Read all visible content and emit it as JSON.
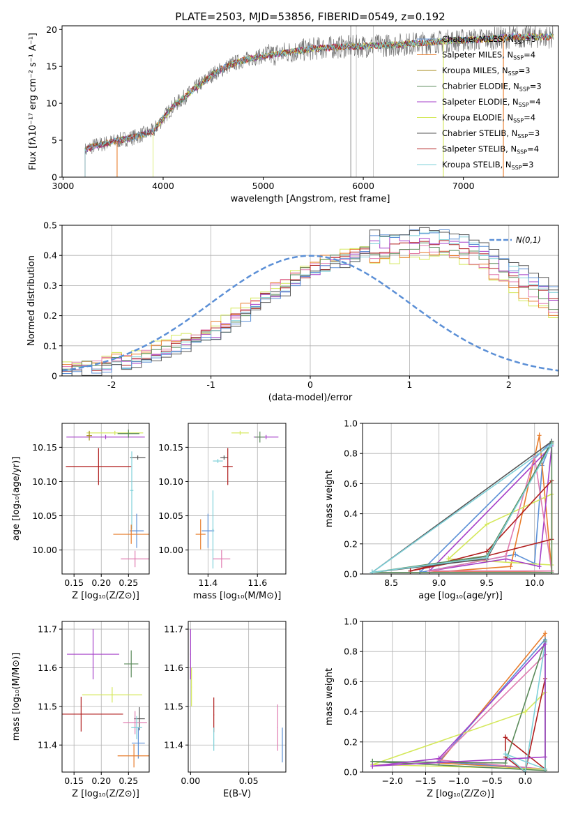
{
  "figure_title": "PLATE=2503, MJD=53856, FIBERID=0549, z=0.192",
  "colors": {
    "Chabrier MILES": "#5b8fd6",
    "Salpeter MILES": "#e87c2a",
    "Kroupa MILES": "#a48a1a",
    "Chabrier ELODIE": "#5a8a5a",
    "Salpeter ELODIE": "#a53fc8",
    "Kroupa ELODIE": "#d4e85a",
    "Chabrier STELIB": "#555555",
    "Salpeter STELIB": "#b01e1e",
    "Kroupa STELIB": "#7ed0d8",
    "pink": "#e07ab0",
    "normal": "#5b8fd6"
  },
  "chart_data": [
    {
      "type": "line",
      "name": "spectrum",
      "xlabel": "wavelength [Angstrom, rest frame]",
      "ylabel": "Flux [fλ10⁻¹⁷ erg cm⁻² s⁻¹ A⁻¹]",
      "xlim": [
        2990,
        7950
      ],
      "ylim": [
        0,
        20.5
      ],
      "xticks": [
        3000,
        4000,
        5000,
        6000,
        7000
      ],
      "yticks": [
        0,
        5,
        10,
        15,
        20
      ],
      "continuum": {
        "x": [
          3220,
          3300,
          3500,
          3700,
          3900,
          4000,
          4100,
          4300,
          4500,
          4700,
          4900,
          5100,
          5300,
          5500,
          5700,
          5900,
          6100,
          6300,
          6500,
          6700,
          6900,
          7100,
          7300,
          7500,
          7800
        ],
        "y": [
          3.6,
          4.2,
          4.8,
          5.4,
          6.2,
          8.0,
          9.6,
          11.8,
          14.0,
          15.4,
          16.2,
          16.6,
          17.0,
          17.4,
          17.6,
          17.7,
          17.8,
          17.9,
          18.1,
          18.3,
          18.5,
          18.6,
          18.8,
          19.0,
          19.0
        ]
      },
      "legend": [
        {
          "label": "Chabrier MILES, N",
          "sub": "SSP",
          "tail": "=5"
        },
        {
          "label": "Salpeter MILES, N",
          "sub": "SSP",
          "tail": "=4"
        },
        {
          "label": "Kroupa MILES, N",
          "sub": "SSP",
          "tail": "=3"
        },
        {
          "label": "Chabrier ELODIE, N",
          "sub": "SSP",
          "tail": "=3"
        },
        {
          "label": "Salpeter ELODIE, N",
          "sub": "SSP",
          "tail": "=4"
        },
        {
          "label": "Kroupa ELODIE, N",
          "sub": "SSP",
          "tail": "=4"
        },
        {
          "label": "Chabrier STELIB, N",
          "sub": "SSP",
          "tail": "=3"
        },
        {
          "label": "Salpeter STELIB, N",
          "sub": "SSP",
          "tail": "=4"
        },
        {
          "label": "Kroupa STELIB, N",
          "sub": "SSP",
          "tail": "=3"
        }
      ],
      "model_starts": [
        3220,
        3220,
        3220,
        3220,
        3220,
        3900,
        3220,
        3220,
        3220
      ],
      "model_cuts": [
        {
          "model": "Salpeter MILES",
          "x": 3540
        },
        {
          "model": "Salpeter MILES",
          "x": 7400
        },
        {
          "model": "Kroupa ELODIE",
          "x": 6800
        }
      ]
    },
    {
      "type": "step",
      "name": "residual histogram",
      "xlabel": "(data-model)/error",
      "ylabel": "Normed distribution",
      "xlim": [
        -2.5,
        2.5
      ],
      "ylim": [
        0,
        0.5
      ],
      "xticks": [
        -2,
        -1,
        0,
        1,
        2
      ],
      "yticks": [
        0.0,
        0.1,
        0.2,
        0.3,
        0.4,
        0.5
      ],
      "bin_width": 0.1,
      "gaussian_label": "N(0,1)",
      "base_profile": [
        0.02,
        0.025,
        0.03,
        0.035,
        0.04,
        0.045,
        0.05,
        0.06,
        0.07,
        0.08,
        0.09,
        0.1,
        0.11,
        0.12,
        0.135,
        0.15,
        0.17,
        0.19,
        0.21,
        0.235,
        0.26,
        0.28,
        0.3,
        0.32,
        0.34,
        0.355,
        0.37,
        0.38,
        0.39,
        0.4,
        0.41,
        0.42,
        0.425,
        0.43,
        0.435,
        0.44,
        0.44,
        0.44,
        0.435,
        0.43,
        0.42,
        0.41,
        0.39,
        0.37,
        0.35,
        0.33,
        0.31,
        0.29,
        0.27,
        0.25,
        0.23,
        0.21,
        0.19,
        0.17,
        0.15,
        0.13,
        0.12,
        0.105,
        0.09,
        0.08,
        0.07,
        0.06,
        0.055,
        0.05,
        0.045,
        0.04,
        0.035,
        0.03,
        0.03,
        0.028
      ]
    },
    {
      "type": "errorbar",
      "name": "age vs Z",
      "xlabel": "Z [log₁₀(Z/Z⊙)]",
      "ylabel": "age  [log₁₀(age/yr)]",
      "xlim": [
        0.128,
        0.288
      ],
      "ylim": [
        9.965,
        10.185
      ],
      "xticks": [
        0.15,
        0.2,
        0.25
      ],
      "xticklabels": [
        "0.15",
        "0.20",
        "0.25"
      ],
      "yticks": [
        10.0,
        10.05,
        10.1,
        10.15
      ],
      "yticklabels": [
        "10.00",
        "10.05",
        "10.10",
        "10.15"
      ],
      "points": [
        {
          "model": "Salpeter ELODIE",
          "x": 0.208,
          "xerr": 0.072,
          "y": 10.165,
          "yerr": 0.003
        },
        {
          "model": "Kroupa ELODIE",
          "x": 0.225,
          "xerr": 0.052,
          "y": 10.171,
          "yerr": 0.003
        },
        {
          "model": "Chabrier ELODIE",
          "x": 0.25,
          "xerr": 0.02,
          "y": 10.17,
          "yerr": 0.006
        },
        {
          "model": "Kroupa MILES",
          "x": 0.178,
          "xerr": 0.005,
          "y": 10.167,
          "yerr": 0.007
        },
        {
          "model": "Salpeter STELIB",
          "x": 0.195,
          "xerr": 0.06,
          "y": 10.122,
          "yerr": 0.027
        },
        {
          "model": "Chabrier STELIB",
          "x": 0.267,
          "xerr": 0.014,
          "y": 10.135,
          "yerr": 0.003
        },
        {
          "model": "Kroupa STELIB",
          "x": 0.256,
          "xerr": 0.003,
          "y": 10.087,
          "yerr": 0.057
        },
        {
          "model": "Chabrier MILES",
          "x": 0.265,
          "xerr": 0.013,
          "y": 10.028,
          "yerr": 0.025
        },
        {
          "model": "Salpeter MILES",
          "x": 0.255,
          "xerr": 0.033,
          "y": 10.023,
          "yerr": 0.014
        },
        {
          "model": "pink",
          "x": 0.262,
          "xerr": 0.026,
          "y": 9.987,
          "yerr": 0.012
        }
      ]
    },
    {
      "type": "errorbar",
      "name": "age vs mass",
      "xlabel": "mass [log₁₀(M/M⊙)]",
      "ylabel": "",
      "xlim": [
        11.32,
        11.715
      ],
      "ylim": [
        9.965,
        10.185
      ],
      "xticks": [
        11.4,
        11.6
      ],
      "xticklabels": [
        "11.4",
        "11.6"
      ],
      "yticks": [
        10.0,
        10.05,
        10.1,
        10.15
      ],
      "yticklabels": [
        "10.00",
        "10.05",
        "10.10",
        "10.15"
      ],
      "points": [
        {
          "model": "Kroupa ELODIE",
          "x": 11.53,
          "xerr": 0.035,
          "y": 10.171,
          "yerr": 0.003
        },
        {
          "model": "Salpeter ELODIE",
          "x": 11.635,
          "xerr": 0.05,
          "y": 10.165,
          "yerr": 0.003
        },
        {
          "model": "Chabrier ELODIE",
          "x": 11.61,
          "xerr": 0.02,
          "y": 10.165,
          "yerr": 0.008
        },
        {
          "model": "Chabrier STELIB",
          "x": 11.465,
          "xerr": 0.015,
          "y": 10.135,
          "yerr": 0.003
        },
        {
          "model": "Kroupa STELIB",
          "x": 11.44,
          "xerr": 0.02,
          "y": 10.13,
          "yerr": 0.003
        },
        {
          "model": "Salpeter STELIB",
          "x": 11.48,
          "xerr": 0.02,
          "y": 10.122,
          "yerr": 0.027
        },
        {
          "model": "Chabrier MILES",
          "x": 11.4,
          "xerr": 0.025,
          "y": 10.028,
          "yerr": 0.025
        },
        {
          "model": "Salpeter MILES",
          "x": 11.37,
          "xerr": 0.02,
          "y": 10.023,
          "yerr": 0.022
        },
        {
          "model": "Kroupa STELIB",
          "x": 11.42,
          "xerr": 0.003,
          "y": 10.03,
          "yerr": 0.057
        },
        {
          "model": "pink",
          "x": 11.455,
          "xerr": 0.035,
          "y": 9.987,
          "yerr": 0.013
        }
      ]
    },
    {
      "type": "line",
      "name": "mass weight vs age",
      "xlabel": "age  [log₁₀(age/yr)]",
      "ylabel": "mass weight",
      "xlim": [
        8.2,
        10.25
      ],
      "ylim": [
        0,
        1.0
      ],
      "xticks": [
        8.5,
        9.0,
        9.5,
        10.0
      ],
      "xticklabels": [
        "8.5",
        "9.0",
        "9.5",
        "10.0"
      ],
      "yticks": [
        0.0,
        0.2,
        0.4,
        0.6,
        0.8,
        1.0
      ],
      "yticklabels": [
        "0.0",
        "0.2",
        "0.4",
        "0.6",
        "0.8",
        "1.0"
      ],
      "series": [
        {
          "model": "Chabrier MILES",
          "x": [
            8.8,
            9.8,
            10.0,
            10.08,
            10.18,
            8.8
          ],
          "y": [
            0.01,
            0.13,
            0.07,
            0.72,
            0.88,
            0.01
          ]
        },
        {
          "model": "Salpeter MILES",
          "x": [
            8.9,
            9.75,
            10.05,
            10.18,
            8.9
          ],
          "y": [
            0.01,
            0.05,
            0.92,
            0.02,
            0.01
          ]
        },
        {
          "model": "Kroupa ELODIE",
          "x": [
            9.1,
            9.5,
            10.18,
            10.18,
            9.1
          ],
          "y": [
            0.1,
            0.33,
            0.53,
            0.06,
            0.1
          ]
        },
        {
          "model": "Salpeter ELODIE",
          "x": [
            8.9,
            9.7,
            10.05,
            10.18,
            8.9
          ],
          "y": [
            0.02,
            0.1,
            0.05,
            0.85,
            0.02
          ]
        },
        {
          "model": "pink",
          "x": [
            8.9,
            9.7,
            10.0,
            10.18,
            8.9
          ],
          "y": [
            0.02,
            0.12,
            0.78,
            0.02,
            0.02
          ]
        },
        {
          "model": "Salpeter STELIB",
          "x": [
            8.7,
            9.5,
            10.18,
            10.18,
            9.5,
            8.7
          ],
          "y": [
            0.02,
            0.15,
            0.62,
            0.23,
            0.12,
            0.02
          ]
        },
        {
          "model": "Chabrier STELIB",
          "x": [
            8.3,
            9.5,
            10.18,
            8.3
          ],
          "y": [
            0.01,
            0.1,
            0.88,
            0.01
          ]
        },
        {
          "model": "Chabrier ELODIE",
          "x": [
            8.3,
            9.5,
            10.18,
            10.18,
            8.3
          ],
          "y": [
            0.01,
            0.12,
            0.87,
            0.01,
            0.01
          ]
        },
        {
          "model": "Kroupa STELIB",
          "x": [
            8.3,
            9.5,
            10.18,
            8.3
          ],
          "y": [
            0.01,
            0.11,
            0.86,
            0.01
          ]
        }
      ]
    },
    {
      "type": "errorbar",
      "name": "mass vs Z",
      "xlabel": "Z [log₁₀(Z/Z⊙)]",
      "ylabel": "mass [log₁₀(M/M⊙)]",
      "xlim": [
        0.128,
        0.288
      ],
      "ylim": [
        11.33,
        11.72
      ],
      "xticks": [
        0.15,
        0.2,
        0.25
      ],
      "xticklabels": [
        "0.15",
        "0.20",
        "0.25"
      ],
      "yticks": [
        11.4,
        11.5,
        11.6,
        11.7
      ],
      "yticklabels": [
        "11.4",
        "11.5",
        "11.6",
        "11.7"
      ],
      "points": [
        {
          "model": "Salpeter ELODIE",
          "x": 0.185,
          "xerr": 0.048,
          "y": 11.635,
          "yerr": 0.065
        },
        {
          "model": "Chabrier ELODIE",
          "x": 0.255,
          "xerr": 0.013,
          "y": 11.61,
          "yerr": 0.035
        },
        {
          "model": "Kroupa ELODIE",
          "x": 0.22,
          "xerr": 0.055,
          "y": 11.53,
          "yerr": 0.02
        },
        {
          "model": "Salpeter STELIB",
          "x": 0.163,
          "xerr": 0.077,
          "y": 11.48,
          "yerr": 0.045
        },
        {
          "model": "Chabrier STELIB",
          "x": 0.27,
          "xerr": 0.01,
          "y": 11.468,
          "yerr": 0.03
        },
        {
          "model": "pink",
          "x": 0.262,
          "xerr": 0.022,
          "y": 11.458,
          "yerr": 0.03
        },
        {
          "model": "Kroupa STELIB",
          "x": 0.265,
          "xerr": 0.01,
          "y": 11.445,
          "yerr": 0.03
        },
        {
          "model": "Chabrier MILES",
          "x": 0.268,
          "xerr": 0.012,
          "y": 11.405,
          "yerr": 0.04
        },
        {
          "model": "Salpeter MILES",
          "x": 0.26,
          "xerr": 0.03,
          "y": 11.372,
          "yerr": 0.03
        }
      ]
    },
    {
      "type": "errorbar",
      "name": "mass vs E(B-V)",
      "xlabel": "E(B-V)",
      "ylabel": "",
      "xlim": [
        -0.002,
        0.082
      ],
      "ylim": [
        11.33,
        11.72
      ],
      "xticks": [
        0.0,
        0.05
      ],
      "xticklabels": [
        "0.00",
        "0.05"
      ],
      "yticks": [
        11.4,
        11.5,
        11.6,
        11.7
      ],
      "yticklabels": [
        "11.4",
        "11.5",
        "11.6",
        "11.7"
      ],
      "points": [
        {
          "model": "Salpeter ELODIE",
          "x": 0.0,
          "xerr": 0.0003,
          "y": 11.635,
          "yerr": 0.065
        },
        {
          "model": "Kroupa ELODIE",
          "x": 0.0008,
          "xerr": 0.0003,
          "y": 11.55,
          "yerr": 0.05
        },
        {
          "model": "Salpeter STELIB",
          "x": 0.02,
          "xerr": 0.0003,
          "y": 11.478,
          "yerr": 0.045
        },
        {
          "model": "Kroupa STELIB",
          "x": 0.02,
          "xerr": 0.0003,
          "y": 11.415,
          "yerr": 0.03
        },
        {
          "model": "pink",
          "x": 0.075,
          "xerr": 0.0003,
          "y": 11.445,
          "yerr": 0.06
        },
        {
          "model": "Chabrier MILES",
          "x": 0.079,
          "xerr": 0.0003,
          "y": 11.4,
          "yerr": 0.045
        }
      ]
    },
    {
      "type": "line",
      "name": "mass weight vs Z",
      "xlabel": "Z [log₁₀(Z/Z⊙)]",
      "ylabel": "mass weight",
      "xlim": [
        -2.45,
        0.5
      ],
      "ylim": [
        0,
        1.0
      ],
      "xticks": [
        -2.0,
        -1.5,
        -1.0,
        -0.5,
        0.0
      ],
      "xticklabels": [
        "−2.0",
        "−1.5",
        "−1.0",
        "−0.5",
        "0.0"
      ],
      "yticks": [
        0.0,
        0.2,
        0.4,
        0.6,
        0.8,
        1.0
      ],
      "yticklabels": [
        "0.0",
        "0.2",
        "0.4",
        "0.6",
        "0.8",
        "1.0"
      ],
      "series": [
        {
          "model": "Salpeter MILES",
          "x": [
            -1.3,
            0.3,
            0.3,
            -1.3
          ],
          "y": [
            0.06,
            0.92,
            0.02,
            0.06
          ]
        },
        {
          "model": "Chabrier MILES",
          "x": [
            -1.3,
            0.3,
            0.3,
            -1.3
          ],
          "y": [
            0.07,
            0.88,
            0.02,
            0.07
          ]
        },
        {
          "model": "pink",
          "x": [
            -1.3,
            0.3,
            0.3,
            -1.3
          ],
          "y": [
            0.08,
            0.78,
            0.02,
            0.08
          ]
        },
        {
          "model": "Kroupa ELODIE",
          "x": [
            -2.3,
            0.0,
            0.3,
            0.3,
            -2.3
          ],
          "y": [
            0.05,
            0.4,
            0.53,
            0.02,
            0.05
          ]
        },
        {
          "model": "Salpeter STELIB",
          "x": [
            -0.3,
            -0.3,
            0.0,
            0.3,
            0.3,
            -0.3
          ],
          "y": [
            0.23,
            0.1,
            0.0,
            0.62,
            0.02,
            0.23
          ]
        },
        {
          "model": "Chabrier ELODIE",
          "x": [
            -2.3,
            -0.3,
            0.3,
            0.3,
            -2.3
          ],
          "y": [
            0.07,
            0.06,
            0.87,
            0.01,
            0.07
          ]
        },
        {
          "model": "Kroupa STELIB",
          "x": [
            -0.3,
            0.0,
            0.3,
            0.3,
            -0.3
          ],
          "y": [
            0.12,
            0.0,
            0.86,
            0.02,
            0.12
          ]
        },
        {
          "model": "Salpeter ELODIE",
          "x": [
            -2.3,
            -1.3,
            0.3,
            0.3,
            -2.3
          ],
          "y": [
            0.04,
            0.09,
            0.85,
            0.1,
            0.04
          ]
        }
      ]
    }
  ]
}
